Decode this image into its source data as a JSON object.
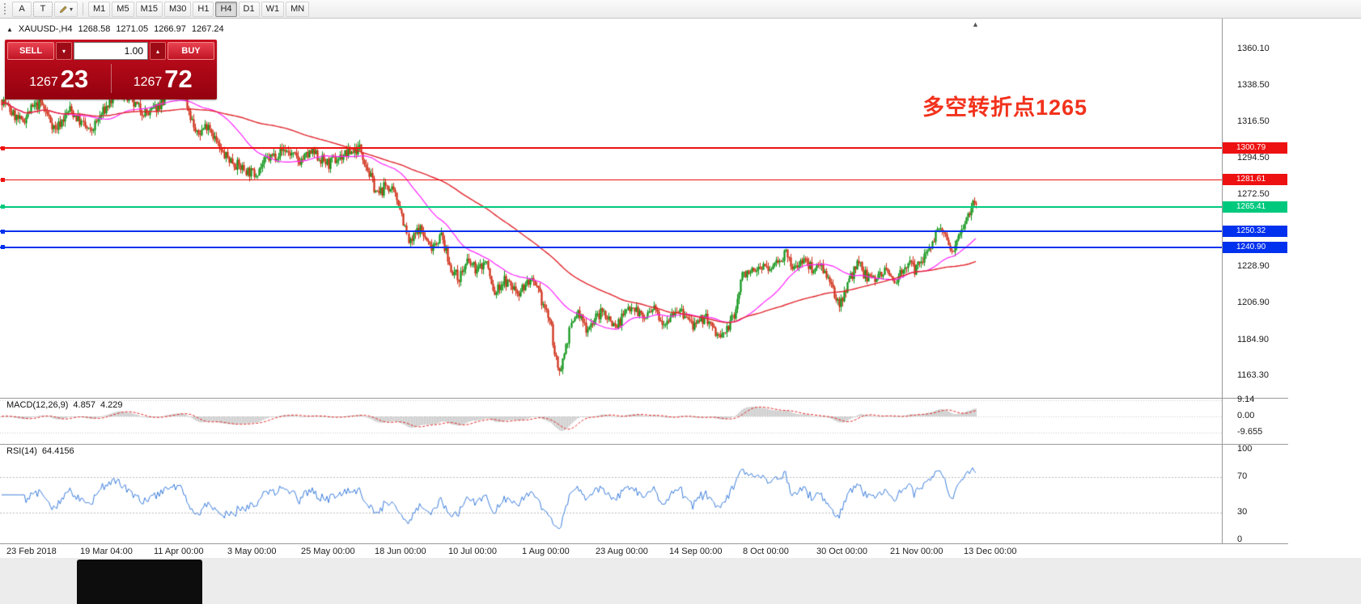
{
  "toolbar": {
    "annotation_button": "A",
    "text_button": "T",
    "timeframes": [
      "M1",
      "M5",
      "M15",
      "M30",
      "H1",
      "H4",
      "D1",
      "W1",
      "MN"
    ],
    "active_timeframe": "H4"
  },
  "icons": {
    "caret_down": "▾",
    "caret_up": "▴",
    "collapse": "▲",
    "shift_marker": "▲"
  },
  "symbol_header": {
    "symbol": "XAUUSD-,H4",
    "open": "1268.58",
    "high": "1271.05",
    "low": "1266.97",
    "close": "1267.24"
  },
  "trade_panel": {
    "sell_label": "SELL",
    "buy_label": "BUY",
    "volume": "1.00",
    "bid_major": "1267",
    "bid_pips": "23",
    "ask_major": "1267",
    "ask_pips": "72"
  },
  "annotation": {
    "text": "多空转折点1265",
    "color": "#f2321c"
  },
  "price_axis": {
    "ticks": [
      "1360.10",
      "1338.50",
      "1316.50",
      "1294.50",
      "1272.50",
      "1228.90",
      "1206.90",
      "1184.90",
      "1163.30"
    ]
  },
  "levels": [
    {
      "price": 1300.79,
      "label": "1300.79",
      "color": "#ee1111",
      "thickness": 2
    },
    {
      "price": 1281.61,
      "label": "1281.61",
      "color": "#ee1111",
      "thickness": 1
    },
    {
      "price": 1265.41,
      "label": "1265.41",
      "color": "#00c97e",
      "thickness": 2
    },
    {
      "price": 1250.32,
      "label": "1250.32",
      "color": "#0031ee",
      "thickness": 2
    },
    {
      "price": 1240.9,
      "label": "1240.90",
      "color": "#0031ee",
      "thickness": 2
    }
  ],
  "macd_panel": {
    "name": "MACD(12,26,9)",
    "value_main": "4.857",
    "value_signal": "4.229",
    "axis_labels": [
      "9.14",
      "0.00",
      "-9.655"
    ]
  },
  "rsi_panel": {
    "name": "RSI(14)",
    "value": "64.4156",
    "axis_labels": [
      "100",
      "70",
      "30",
      "0"
    ]
  },
  "time_axis": {
    "labels": [
      "23 Feb 2018",
      "19 Mar 04:00",
      "11 Apr 00:00",
      "3 May 00:00",
      "25 May 00:00",
      "18 Jun 00:00",
      "10 Jul 00:00",
      "1 Aug 00:00",
      "23 Aug 00:00",
      "14 Sep 00:00",
      "8 Oct 00:00",
      "30 Oct 00:00",
      "21 Nov 00:00",
      "13 Dec 00:00"
    ]
  },
  "colors": {
    "candle_up": "#0b9314",
    "candle_down": "#cf2a12",
    "macd_hist": "#c6c6c6",
    "macd_signal": "#e02020",
    "rsi_line": "#3d7edb",
    "panel_red": "#c60f1f",
    "level_red": "#ee1111",
    "level_green": "#00c97e",
    "level_blue": "#0031ee"
  },
  "chart_data": {
    "type": "candlestick",
    "symbol": "XAUUSD",
    "timeframe": "H4",
    "title": "XAUUSD-,H4 1268.58 1271.05 1266.97 1267.24",
    "price_range": [
      1152,
      1374
    ],
    "y_ticks": [
      1360.1,
      1338.5,
      1316.5,
      1294.5,
      1272.5,
      1228.9,
      1206.9,
      1184.9,
      1163.3
    ],
    "horizontal_levels": [
      1300.79,
      1281.61,
      1265.41,
      1250.32,
      1240.9
    ],
    "last_ohlc": {
      "open": 1268.58,
      "high": 1271.05,
      "low": 1266.97,
      "close": 1267.24
    },
    "bid": 1267.23,
    "ask": 1267.72,
    "annotation_text": "多空转折点1265",
    "indicators": {
      "macd": {
        "params": [
          12,
          26,
          9
        ],
        "main": 4.857,
        "signal": 4.229,
        "axis_max": 9.14,
        "axis_min": -9.655
      },
      "rsi": {
        "period": 14,
        "value": 64.4156,
        "levels": [
          70,
          30
        ],
        "range": [
          0,
          100
        ]
      },
      "moving_averages": [
        {
          "color": "#ff22ff",
          "period": 40
        },
        {
          "color": "#e0242c",
          "period": 110
        }
      ]
    },
    "time_labels": [
      "23 Feb 2018",
      "19 Mar 04:00",
      "11 Apr 00:00",
      "3 May 00:00",
      "25 May 00:00",
      "18 Jun 00:00",
      "10 Jul 00:00",
      "1 Aug 00:00",
      "23 Aug 00:00",
      "14 Sep 00:00",
      "8 Oct 00:00",
      "30 Oct 00:00",
      "21 Nov 00:00",
      "13 Dec 00:00"
    ],
    "price_keyframes": [
      [
        0.0,
        1330
      ],
      [
        0.01,
        1322
      ],
      [
        0.02,
        1316
      ],
      [
        0.03,
        1324
      ],
      [
        0.04,
        1328
      ],
      [
        0.055,
        1312
      ],
      [
        0.07,
        1324
      ],
      [
        0.09,
        1310
      ],
      [
        0.105,
        1324
      ],
      [
        0.12,
        1336
      ],
      [
        0.135,
        1327
      ],
      [
        0.15,
        1321
      ],
      [
        0.169,
        1331
      ],
      [
        0.185,
        1337
      ],
      [
        0.2,
        1308
      ],
      [
        0.212,
        1316
      ],
      [
        0.225,
        1298
      ],
      [
        0.243,
        1290
      ],
      [
        0.258,
        1285
      ],
      [
        0.272,
        1294
      ],
      [
        0.29,
        1300
      ],
      [
        0.305,
        1293
      ],
      [
        0.318,
        1298
      ],
      [
        0.335,
        1291
      ],
      [
        0.352,
        1297
      ],
      [
        0.368,
        1301
      ],
      [
        0.378,
        1284
      ],
      [
        0.386,
        1272
      ],
      [
        0.395,
        1279
      ],
      [
        0.408,
        1268
      ],
      [
        0.418,
        1242
      ],
      [
        0.428,
        1253
      ],
      [
        0.439,
        1241
      ],
      [
        0.451,
        1248
      ],
      [
        0.459,
        1230
      ],
      [
        0.468,
        1222
      ],
      [
        0.478,
        1232
      ],
      [
        0.488,
        1227
      ],
      [
        0.497,
        1233
      ],
      [
        0.505,
        1212
      ],
      [
        0.515,
        1221
      ],
      [
        0.53,
        1214
      ],
      [
        0.542,
        1221
      ],
      [
        0.552,
        1212
      ],
      [
        0.563,
        1196
      ],
      [
        0.571,
        1165
      ],
      [
        0.576,
        1173
      ],
      [
        0.582,
        1189
      ],
      [
        0.59,
        1202
      ],
      [
        0.6,
        1192
      ],
      [
        0.61,
        1199
      ],
      [
        0.617,
        1202
      ],
      [
        0.63,
        1193
      ],
      [
        0.646,
        1207
      ],
      [
        0.658,
        1198
      ],
      [
        0.67,
        1203
      ],
      [
        0.68,
        1196
      ],
      [
        0.692,
        1204
      ],
      [
        0.703,
        1198
      ],
      [
        0.713,
        1192
      ],
      [
        0.722,
        1200
      ],
      [
        0.729,
        1192
      ],
      [
        0.738,
        1186
      ],
      [
        0.746,
        1193
      ],
      [
        0.752,
        1200
      ],
      [
        0.758,
        1222
      ],
      [
        0.766,
        1228
      ],
      [
        0.771,
        1224
      ],
      [
        0.78,
        1231
      ],
      [
        0.787,
        1226
      ],
      [
        0.795,
        1233
      ],
      [
        0.804,
        1237
      ],
      [
        0.812,
        1227
      ],
      [
        0.821,
        1234
      ],
      [
        0.832,
        1228
      ],
      [
        0.841,
        1232
      ],
      [
        0.848,
        1221
      ],
      [
        0.854,
        1212
      ],
      [
        0.86,
        1207
      ],
      [
        0.866,
        1216
      ],
      [
        0.873,
        1225
      ],
      [
        0.879,
        1231
      ],
      [
        0.886,
        1224
      ],
      [
        0.895,
        1222
      ],
      [
        0.905,
        1227
      ],
      [
        0.916,
        1221
      ],
      [
        0.923,
        1227
      ],
      [
        0.929,
        1231
      ],
      [
        0.937,
        1227
      ],
      [
        0.945,
        1234
      ],
      [
        0.952,
        1242
      ],
      [
        0.958,
        1248
      ],
      [
        0.964,
        1251
      ],
      [
        0.97,
        1244
      ],
      [
        0.975,
        1239
      ],
      [
        0.98,
        1247
      ],
      [
        0.985,
        1253
      ],
      [
        0.99,
        1259
      ],
      [
        0.995,
        1266
      ],
      [
        1.0,
        1270
      ]
    ]
  }
}
